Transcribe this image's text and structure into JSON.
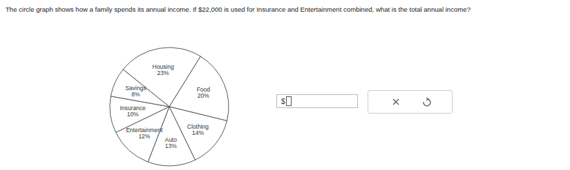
{
  "question": "The circle graph shows how a family spends its annual income. If $22,000 is used for Insurance and Entertainment combined, what is the total annual income?",
  "answer_prefix": "$",
  "chart_data": {
    "type": "pie",
    "categories": [
      "Housing",
      "Food",
      "Clothing",
      "Auto",
      "Entertainment",
      "Insurance",
      "Savings"
    ],
    "values": [
      23,
      20,
      14,
      13,
      12,
      10,
      8
    ],
    "value_labels": [
      "23%",
      "20%",
      "14%",
      "13%",
      "12%",
      "10%",
      "8%"
    ],
    "color": "#ffffff",
    "data_labels": true
  }
}
